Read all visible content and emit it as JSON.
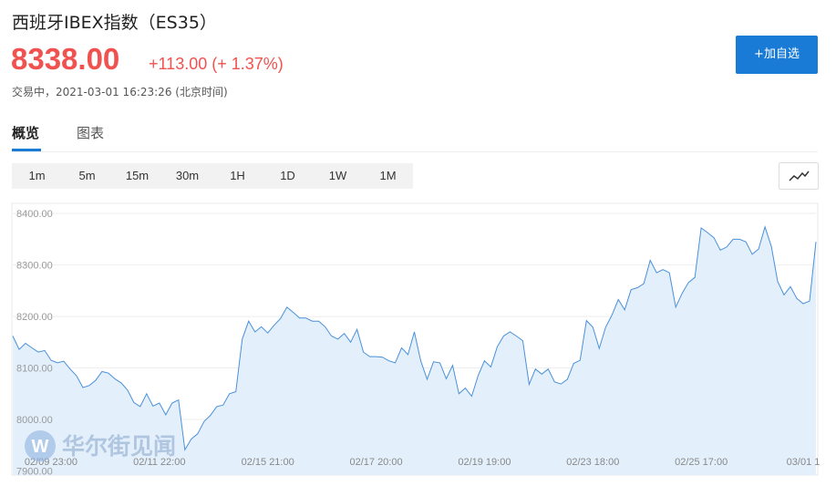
{
  "header": {
    "title": "西班牙IBEX指数（ES35）",
    "price": "8338.00",
    "change": "+113.00 (+ 1.37%)",
    "status": "交易中，2021-03-01 16:23:26 (北京时间)"
  },
  "button": "+加自选",
  "tabs": [
    "概览",
    "图表"
  ],
  "intervals": [
    "1m",
    "5m",
    "15m",
    "30m",
    "1H",
    "1D",
    "1W",
    "1M"
  ],
  "watermark": "华尔街见闻",
  "chart_data": {
    "type": "line",
    "color": "#4a90d9",
    "fill": "#e3f0fc",
    "grid": true,
    "values": [
      8162,
      8136,
      8148,
      8139,
      8131,
      8134,
      8115,
      8110,
      8113,
      8098,
      8085,
      8062,
      8066,
      8076,
      8093,
      8090,
      8079,
      8071,
      8057,
      8033,
      8025,
      8050,
      8026,
      8032,
      8009,
      8032,
      8038,
      7941,
      7962,
      7972,
      7996,
      8008,
      8025,
      8028,
      8050,
      8054,
      8156,
      8191,
      8170,
      8180,
      8168,
      8183,
      8196,
      8218,
      8208,
      8197,
      8197,
      8191,
      8191,
      8180,
      8162,
      8156,
      8167,
      8150,
      8175,
      8131,
      8122,
      8122,
      8121,
      8114,
      8110,
      8139,
      8126,
      8170,
      8114,
      8078,
      8112,
      8110,
      8079,
      8105,
      8050,
      8061,
      8045,
      8085,
      8114,
      8102,
      8141,
      8162,
      8170,
      8162,
      8153,
      8068,
      8098,
      8088,
      8098,
      8073,
      8069,
      8078,
      8109,
      8115,
      8192,
      8179,
      8138,
      8179,
      8203,
      8233,
      8213,
      8252,
      8256,
      8264,
      8309,
      8285,
      8291,
      8285,
      8218,
      8245,
      8266,
      8276,
      8372,
      8363,
      8353,
      8329,
      8335,
      8350,
      8350,
      8345,
      8321,
      8331,
      8374,
      8336,
      8268,
      8242,
      8258,
      8235,
      8225,
      8230,
      8345
    ],
    "xlim": [
      0,
      126
    ],
    "xticks": [
      {
        "value": 6,
        "label": "02/09 23:00"
      },
      {
        "value": 23,
        "label": "02/11 22:00"
      },
      {
        "value": 40,
        "label": "02/15 21:00"
      },
      {
        "value": 57,
        "label": "02/17 20:00"
      },
      {
        "value": 74,
        "label": "02/19 19:00"
      },
      {
        "value": 91,
        "label": "02/23 18:00"
      },
      {
        "value": 108,
        "label": "02/25 17:00"
      },
      {
        "value": 124,
        "label": "03/01 1"
      }
    ],
    "ylim": [
      7892,
      8418
    ],
    "yticks": [
      {
        "value": 7900,
        "label": "7900.00"
      },
      {
        "value": 8000,
        "label": "8000.00"
      },
      {
        "value": 8100,
        "label": "8100.00"
      },
      {
        "value": 8200,
        "label": "8200.00"
      },
      {
        "value": 8300,
        "label": "8300.00"
      },
      {
        "value": 8400,
        "label": "8400.00"
      }
    ]
  }
}
